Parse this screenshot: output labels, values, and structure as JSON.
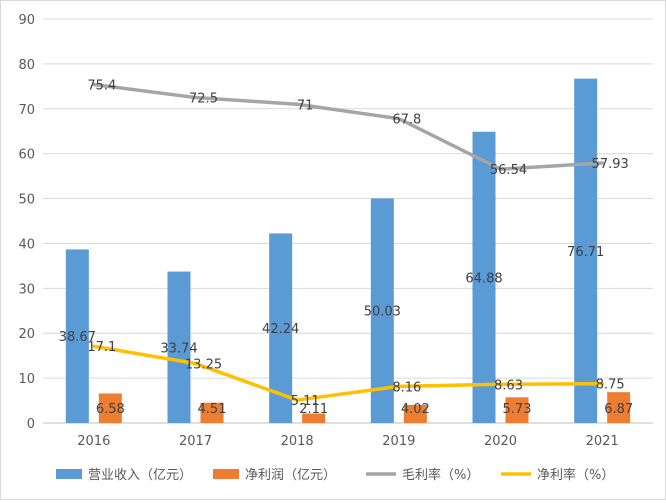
{
  "chart_data": {
    "type": "bar",
    "categories": [
      "2016",
      "2017",
      "2018",
      "2019",
      "2020",
      "2021"
    ],
    "ylim": [
      0,
      90
    ],
    "yticks": [
      0,
      10,
      20,
      30,
      40,
      50,
      60,
      70,
      80,
      90
    ],
    "grid": true,
    "legend_position": "bottom",
    "series": [
      {
        "name": "营业收入（亿元）",
        "kind": "bar",
        "color": "#5b9bd5",
        "values": [
          38.67,
          33.74,
          42.24,
          50.03,
          64.88,
          76.71
        ]
      },
      {
        "name": "净利润（亿元）",
        "kind": "bar",
        "color": "#ed7d31",
        "values": [
          6.58,
          4.51,
          2.11,
          4.02,
          5.73,
          6.87
        ]
      },
      {
        "name": "毛利率（%）",
        "kind": "line",
        "color": "#a5a5a5",
        "values": [
          75.4,
          72.5,
          71,
          67.8,
          56.54,
          57.93
        ]
      },
      {
        "name": "净利率（%）",
        "kind": "line",
        "color": "#ffc000",
        "values": [
          17.1,
          13.25,
          5.11,
          8.16,
          8.63,
          8.75
        ]
      }
    ]
  }
}
